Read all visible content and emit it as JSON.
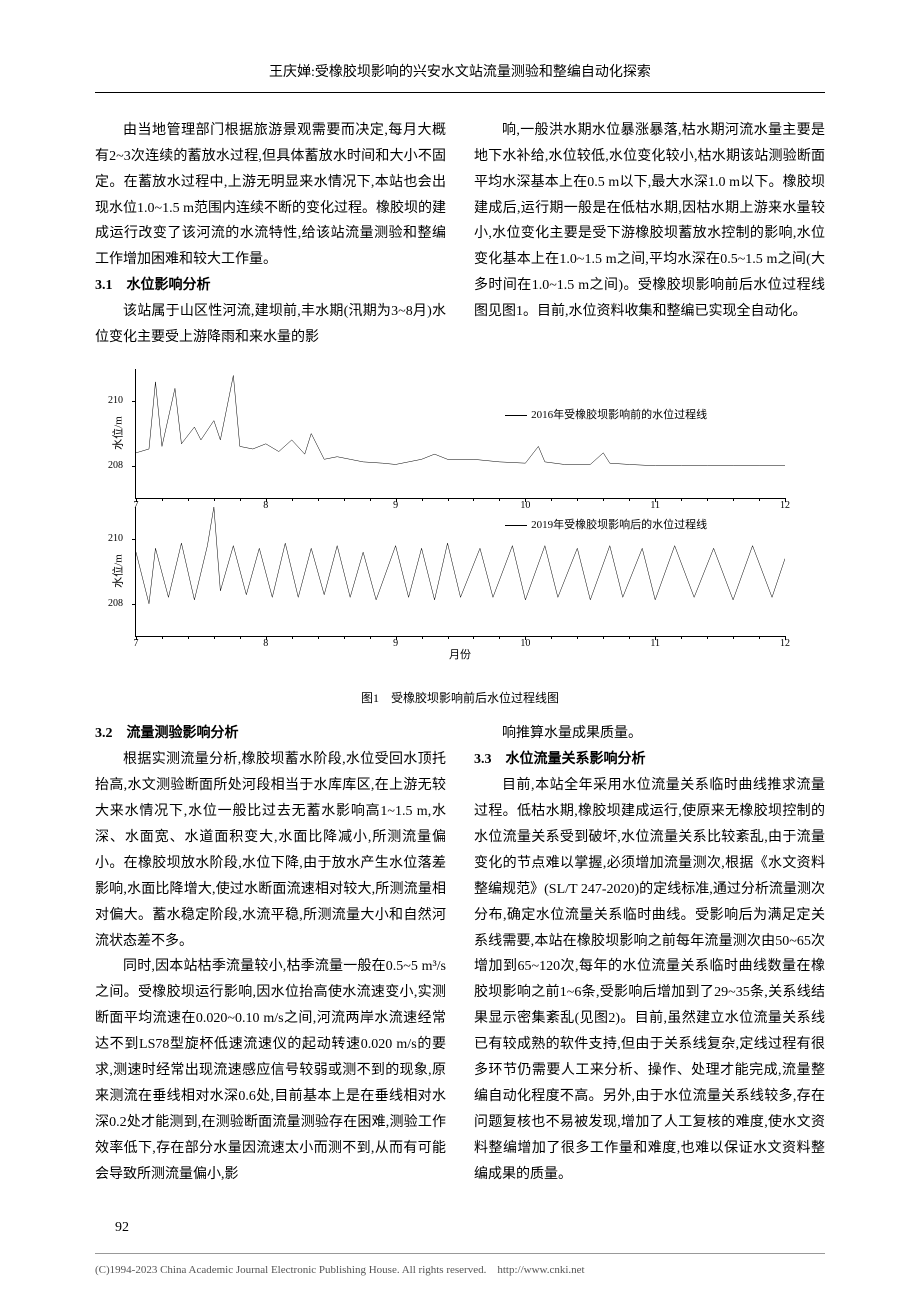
{
  "header": {
    "running_title": "王庆婵:受橡胶坝影响的兴安水文站流量测验和整编自动化探索"
  },
  "top_block": {
    "left_para": "由当地管理部门根据旅游景观需要而决定,每月大概有2~3次连续的蓄放水过程,但具体蓄放水时间和大小不固定。在蓄放水过程中,上游无明显来水情况下,本站也会出现水位1.0~1.5 m范围内连续不断的变化过程。橡胶坝的建成运行改变了该河流的水流特性,给该站流量测验和整编工作增加困难和较大工作量。",
    "sec31_head": "3.1　水位影响分析",
    "sec31_body": "该站属于山区性河流,建坝前,丰水期(汛期为3~8月)水位变化主要受上游降雨和来水量的影",
    "right_para": "响,一般洪水期水位暴涨暴落,枯水期河流水量主要是地下水补给,水位较低,水位变化较小,枯水期该站测验断面平均水深基本上在0.5 m以下,最大水深1.0 m以下。橡胶坝建成后,运行期一般是在低枯水期,因枯水期上游来水量较小,水位变化主要是受下游橡胶坝蓄放水控制的影响,水位变化基本上在1.0~1.5 m之间,平均水深在0.5~1.5 m之间(大多时间在1.0~1.5 m之间)。受橡胶坝影响前后水位过程线图见图1。目前,水位资料收集和整编已实现全自动化。"
  },
  "figure1": {
    "type": "line",
    "caption": "图1　受橡胶坝影响前后水位过程线图",
    "xaxis_label": "月份",
    "ylabel": "水位/m",
    "yticks": [
      208,
      210
    ],
    "xticks": [
      7,
      8,
      9,
      10,
      11,
      12
    ],
    "panels": [
      {
        "legend": "2016年受橡胶坝影响前的水位过程线",
        "legend_top_pct": 28,
        "series_points": [
          [
            0,
            35
          ],
          [
            2,
            38
          ],
          [
            3,
            90
          ],
          [
            4,
            40
          ],
          [
            6,
            85
          ],
          [
            7,
            42
          ],
          [
            9,
            55
          ],
          [
            10,
            45
          ],
          [
            12,
            60
          ],
          [
            13,
            45
          ],
          [
            15,
            95
          ],
          [
            16,
            40
          ],
          [
            18,
            38
          ],
          [
            20,
            42
          ],
          [
            22,
            36
          ],
          [
            24,
            45
          ],
          [
            26,
            34
          ],
          [
            27,
            50
          ],
          [
            29,
            30
          ],
          [
            31,
            32
          ],
          [
            33,
            30
          ],
          [
            35,
            28
          ],
          [
            38,
            27
          ],
          [
            40,
            26
          ],
          [
            42,
            28
          ],
          [
            44,
            30
          ],
          [
            46,
            34
          ],
          [
            48,
            30
          ],
          [
            52,
            30
          ],
          [
            56,
            28
          ],
          [
            60,
            27
          ],
          [
            62,
            40
          ],
          [
            63,
            28
          ],
          [
            66,
            26
          ],
          [
            70,
            26
          ],
          [
            72,
            35
          ],
          [
            73,
            27
          ],
          [
            76,
            26
          ],
          [
            80,
            25
          ],
          [
            84,
            25
          ],
          [
            88,
            25
          ],
          [
            92,
            25
          ],
          [
            96,
            25
          ],
          [
            100,
            25
          ]
        ]
      },
      {
        "legend": "2019年受橡胶坝影响后的水位过程线",
        "legend_top_pct": 6,
        "series_points": [
          [
            0,
            65
          ],
          [
            2,
            25
          ],
          [
            3,
            68
          ],
          [
            5,
            30
          ],
          [
            7,
            72
          ],
          [
            9,
            28
          ],
          [
            11,
            70
          ],
          [
            12,
            100
          ],
          [
            13,
            35
          ],
          [
            15,
            70
          ],
          [
            17,
            32
          ],
          [
            19,
            68
          ],
          [
            21,
            30
          ],
          [
            23,
            72
          ],
          [
            25,
            30
          ],
          [
            27,
            68
          ],
          [
            29,
            32
          ],
          [
            31,
            70
          ],
          [
            33,
            30
          ],
          [
            35,
            65
          ],
          [
            37,
            28
          ],
          [
            40,
            70
          ],
          [
            42,
            30
          ],
          [
            44,
            68
          ],
          [
            46,
            28
          ],
          [
            48,
            72
          ],
          [
            50,
            30
          ],
          [
            53,
            68
          ],
          [
            55,
            30
          ],
          [
            58,
            70
          ],
          [
            60,
            28
          ],
          [
            63,
            70
          ],
          [
            65,
            30
          ],
          [
            68,
            68
          ],
          [
            70,
            28
          ],
          [
            73,
            70
          ],
          [
            75,
            30
          ],
          [
            78,
            68
          ],
          [
            80,
            28
          ],
          [
            83,
            70
          ],
          [
            86,
            30
          ],
          [
            89,
            68
          ],
          [
            92,
            28
          ],
          [
            95,
            70
          ],
          [
            98,
            30
          ],
          [
            100,
            60
          ]
        ]
      }
    ],
    "line_color": "#000000",
    "background_color": "#ffffff"
  },
  "bottom_block": {
    "sec32_head": "3.2　流量测验影响分析",
    "sec32_p1": "根据实测流量分析,橡胶坝蓄水阶段,水位受回水顶托抬高,水文测验断面所处河段相当于水库库区,在上游无较大来水情况下,水位一般比过去无蓄水影响高1~1.5 m,水深、水面宽、水道面积变大,水面比降减小,所测流量偏小。在橡胶坝放水阶段,水位下降,由于放水产生水位落差影响,水面比降增大,使过水断面流速相对较大,所测流量相对偏大。蓄水稳定阶段,水流平稳,所测流量大小和自然河流状态差不多。",
    "sec32_p2": "同时,因本站枯季流量较小,枯季流量一般在0.5~5 m³/s之间。受橡胶坝运行影响,因水位抬高使水流速变小,实测断面平均流速在0.020~0.10 m/s之间,河流两岸水流速经常达不到LS78型旋杯低速流速仪的起动转速0.020 m/s的要求,测速时经常出现流速感应信号较弱或测不到的现象,原来测流在垂线相对水深0.6处,目前基本上是在垂线相对水深0.2处才能测到,在测验断面流量测验存在困难,测验工作效率低下,存在部分水量因流速太小而测不到,从而有可能会导致所测流量偏小,影",
    "r_p1": "响推算水量成果质量。",
    "sec33_head": "3.3　水位流量关系影响分析",
    "sec33_body": "目前,本站全年采用水位流量关系临时曲线推求流量过程。低枯水期,橡胶坝建成运行,使原来无橡胶坝控制的水位流量关系受到破坏,水位流量关系比较紊乱,由于流量变化的节点难以掌握,必须增加流量测次,根据《水文资料整编规范》(SL/T 247-2020)的定线标准,通过分析流量测次分布,确定水位流量关系临时曲线。受影响后为满足定关系线需要,本站在橡胶坝影响之前每年流量测次由50~65次增加到65~120次,每年的水位流量关系临时曲线数量在橡胶坝影响之前1~6条,受影响后增加到了29~35条,关系线结果显示密集紊乱(见图2)。目前,虽然建立水位流量关系线已有较成熟的软件支持,但由于关系线复杂,定线过程有很多环节仍需要人工来分析、操作、处理才能完成,流量整编自动化程度不高。另外,由于水位流量关系线较多,存在问题复核也不易被发现,增加了人工复核的难度,使水文资料整编增加了很多工作量和难度,也难以保证水文资料整编成果的质量。"
  },
  "page_number": "92",
  "footer": {
    "text": "(C)1994-2023 China Academic Journal Electronic Publishing House. All rights reserved.　http://www.cnki.net"
  }
}
